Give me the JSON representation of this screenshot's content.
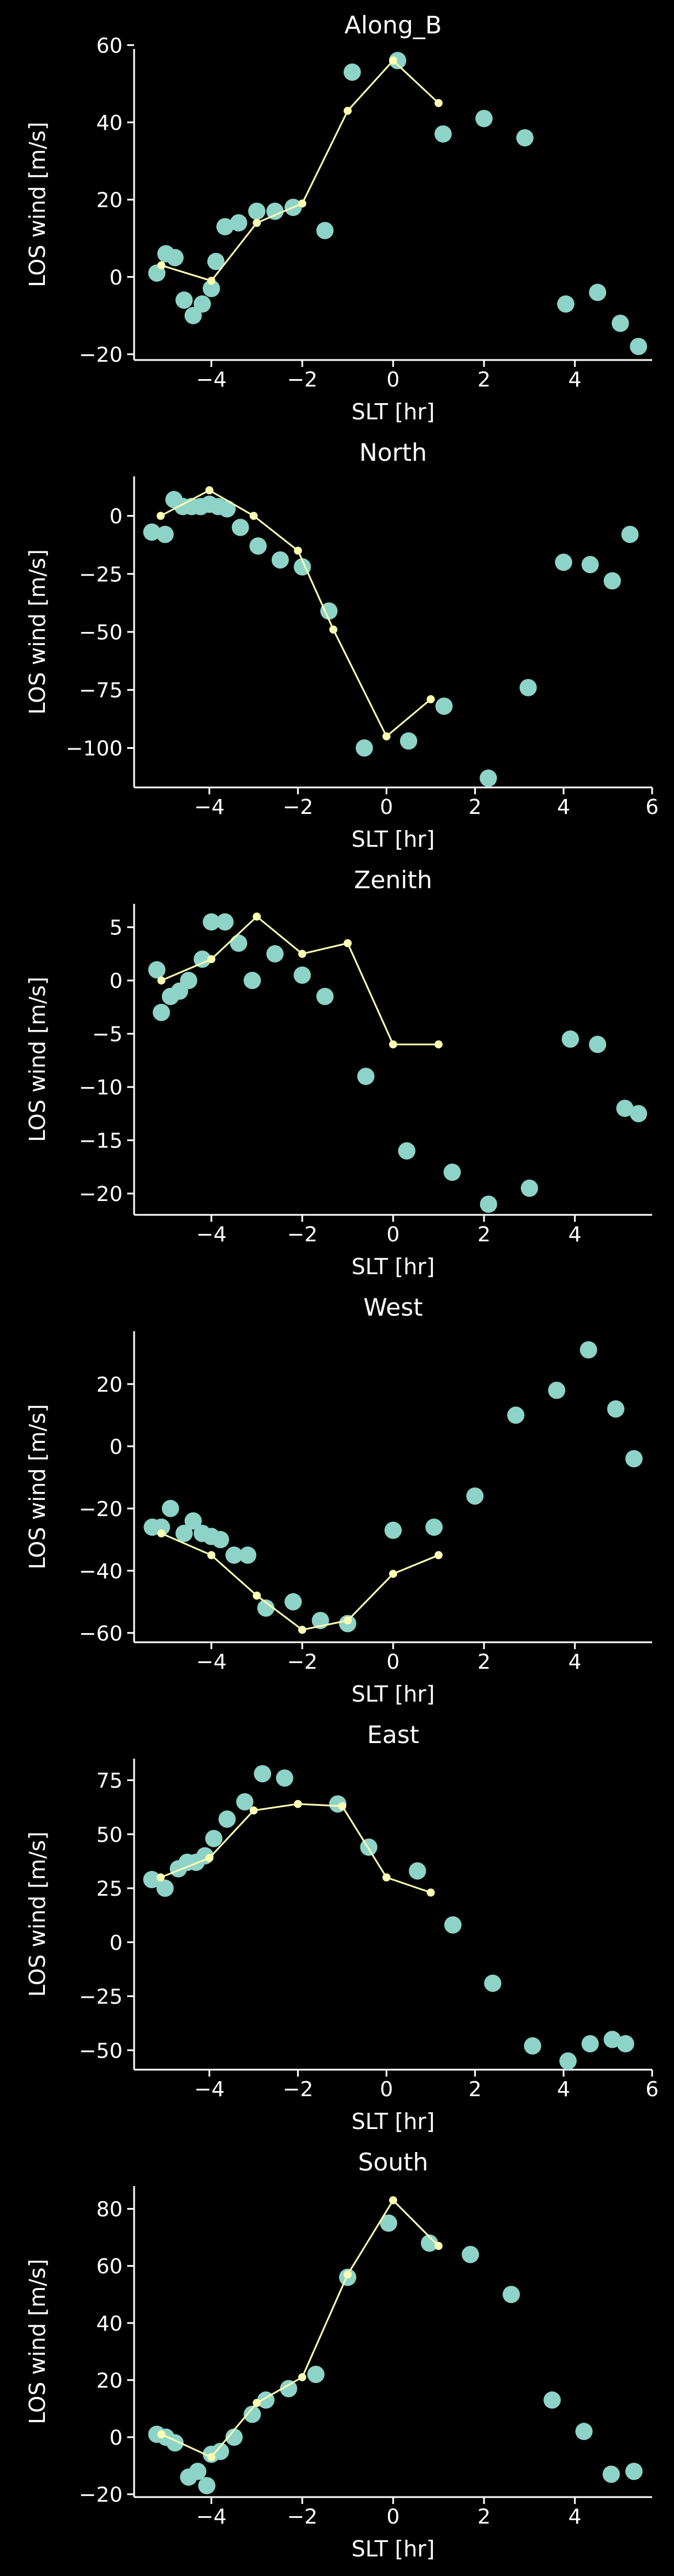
{
  "colors": {
    "background": "#000000",
    "axis": "#ffffff",
    "scatter": "#8dd3c7",
    "line": "#ffffb3"
  },
  "chart_data": [
    {
      "type": "scatter",
      "title": "Along_B",
      "xlabel": "SLT [hr]",
      "ylabel": "LOS wind [m/s]",
      "xlim": [
        -5.7,
        5.7
      ],
      "ylim": [
        -21.5,
        59
      ],
      "xticks": [
        -4,
        -2,
        0,
        2,
        4
      ],
      "yticks": [
        -20,
        0,
        20,
        40,
        60
      ],
      "xtick_labels": [
        "−4",
        "−2",
        "0",
        "2",
        "4"
      ],
      "ytick_labels": [
        "−20",
        "0",
        "20",
        "40",
        "60"
      ],
      "grid": false,
      "scatter": {
        "x": [
          -5.2,
          -5.0,
          -4.8,
          -4.6,
          -4.4,
          -4.2,
          -4.0,
          -3.9,
          -3.7,
          -3.4,
          -3.0,
          -2.6,
          -2.2,
          -1.5,
          -0.9,
          0.1,
          1.1,
          2.0,
          2.9,
          3.8,
          4.5,
          5.0,
          5.4
        ],
        "y": [
          1,
          6,
          5,
          -6,
          -10,
          -7,
          -3,
          4,
          13,
          14,
          17,
          17,
          18,
          12,
          53,
          56,
          37,
          41,
          36,
          -7,
          -4,
          -12,
          -18
        ]
      },
      "line": {
        "x": [
          -5.1,
          -4.0,
          -3.0,
          -2.0,
          -1.0,
          0.0,
          1.0
        ],
        "y": [
          3,
          -1,
          14,
          19,
          43,
          56,
          45
        ]
      }
    },
    {
      "type": "scatter",
      "title": "North",
      "xlabel": "SLT [hr]",
      "ylabel": "LOS wind [m/s]",
      "xlim": [
        -5.7,
        6.0
      ],
      "ylim": [
        -117,
        17
      ],
      "xticks": [
        -4,
        -2,
        0,
        2,
        4,
        6
      ],
      "yticks": [
        -100,
        -75,
        -50,
        -25,
        0
      ],
      "xtick_labels": [
        "−4",
        "−2",
        "0",
        "2",
        "4",
        "6"
      ],
      "ytick_labels": [
        "−100",
        "−75",
        "−50",
        "−25",
        "0"
      ],
      "grid": false,
      "scatter": {
        "x": [
          -5.3,
          -5.0,
          -4.8,
          -4.6,
          -4.4,
          -4.2,
          -4.0,
          -3.8,
          -3.6,
          -3.3,
          -2.9,
          -2.4,
          -1.9,
          -1.3,
          -0.5,
          0.5,
          1.3,
          2.3,
          3.2,
          4.0,
          4.6,
          5.1,
          5.5
        ],
        "y": [
          -7,
          -8,
          7,
          4,
          4,
          4,
          5,
          4,
          3,
          -5,
          -13,
          -19,
          -22,
          -41,
          -100,
          -97,
          -82,
          -113,
          -74,
          -20,
          -21,
          -28,
          -8
        ]
      },
      "line": {
        "x": [
          -5.1,
          -4.0,
          -3.0,
          -2.0,
          -1.2,
          0.0,
          1.0
        ],
        "y": [
          0,
          11,
          0,
          -15,
          -49,
          -95,
          -79
        ]
      }
    },
    {
      "type": "scatter",
      "title": "Zenith",
      "xlabel": "SLT [hr]",
      "ylabel": "LOS wind [m/s]",
      "xlim": [
        -5.7,
        5.7
      ],
      "ylim": [
        -22,
        7.2
      ],
      "xticks": [
        -4,
        -2,
        0,
        2,
        4
      ],
      "yticks": [
        -20,
        -15,
        -10,
        -5,
        0,
        5
      ],
      "xtick_labels": [
        "−4",
        "−2",
        "0",
        "2",
        "4"
      ],
      "ytick_labels": [
        "−20",
        "−15",
        "−10",
        "−5",
        "0",
        "5"
      ],
      "grid": false,
      "scatter": {
        "x": [
          -5.2,
          -5.1,
          -4.9,
          -4.7,
          -4.5,
          -4.2,
          -4.0,
          -3.7,
          -3.4,
          -3.1,
          -2.6,
          -2.0,
          -1.5,
          -0.6,
          0.3,
          1.3,
          2.1,
          3.0,
          3.9,
          4.5,
          5.1,
          5.4
        ],
        "y": [
          1,
          -3,
          -1.5,
          -1,
          0,
          2,
          5.5,
          5.5,
          3.5,
          0,
          2.5,
          0.5,
          -1.5,
          -9,
          -16,
          -18,
          -21,
          -19.5,
          -5.5,
          -6,
          -12,
          -12.5
        ]
      },
      "line": {
        "x": [
          -5.1,
          -4.0,
          -3.0,
          -2.0,
          -1.0,
          0.0,
          1.0
        ],
        "y": [
          0,
          2,
          6,
          2.5,
          3.5,
          -6,
          -6
        ]
      }
    },
    {
      "type": "scatter",
      "title": "West",
      "xlabel": "SLT [hr]",
      "ylabel": "LOS wind [m/s]",
      "xlim": [
        -5.7,
        5.7
      ],
      "ylim": [
        -63,
        37
      ],
      "xticks": [
        -4,
        -2,
        0,
        2,
        4
      ],
      "yticks": [
        -60,
        -40,
        -20,
        0,
        20
      ],
      "xtick_labels": [
        "−4",
        "−2",
        "0",
        "2",
        "4"
      ],
      "ytick_labels": [
        "−60",
        "−40",
        "−20",
        "0",
        "20"
      ],
      "grid": false,
      "scatter": {
        "x": [
          -5.3,
          -5.1,
          -4.9,
          -4.6,
          -4.4,
          -4.2,
          -4.0,
          -3.8,
          -3.5,
          -3.2,
          -2.8,
          -2.2,
          -1.6,
          -1.0,
          0.0,
          0.9,
          1.8,
          2.7,
          3.6,
          4.3,
          4.9,
          5.3
        ],
        "y": [
          -26,
          -26,
          -20,
          -28,
          -24,
          -28,
          -29,
          -30,
          -35,
          -35,
          -52,
          -50,
          -56,
          -57,
          -27,
          -26,
          -16,
          10,
          18,
          31,
          12,
          -4
        ]
      },
      "line": {
        "x": [
          -5.1,
          -4.0,
          -3.0,
          -2.0,
          -1.0,
          0.0,
          1.0
        ],
        "y": [
          -28,
          -35,
          -48,
          -59,
          -56,
          -41,
          -35
        ]
      }
    },
    {
      "type": "scatter",
      "title": "East",
      "xlabel": "SLT [hr]",
      "ylabel": "LOS wind [m/s]",
      "xlim": [
        -5.7,
        6.0
      ],
      "ylim": [
        -59,
        85
      ],
      "xticks": [
        -4,
        -2,
        0,
        2,
        4,
        6
      ],
      "yticks": [
        -50,
        -25,
        0,
        25,
        50,
        75
      ],
      "xtick_labels": [
        "−4",
        "−2",
        "0",
        "2",
        "4",
        "6"
      ],
      "ytick_labels": [
        "−50",
        "−25",
        "0",
        "25",
        "50",
        "75"
      ],
      "grid": false,
      "scatter": {
        "x": [
          -5.3,
          -5.0,
          -4.7,
          -4.5,
          -4.3,
          -4.1,
          -3.9,
          -3.6,
          -3.2,
          -2.8,
          -2.3,
          -1.1,
          -0.4,
          0.7,
          1.5,
          2.4,
          3.3,
          4.1,
          4.6,
          5.1,
          5.4
        ],
        "y": [
          29,
          25,
          34,
          37,
          37,
          40,
          48,
          57,
          65,
          78,
          76,
          64,
          44,
          33,
          8,
          -19,
          -48,
          -55,
          -47,
          -45,
          -47
        ]
      },
      "line": {
        "x": [
          -5.1,
          -4.0,
          -3.0,
          -2.0,
          -1.0,
          0.0,
          1.0
        ],
        "y": [
          30,
          39,
          61,
          64,
          63,
          30,
          23
        ]
      }
    },
    {
      "type": "scatter",
      "title": "South",
      "xlabel": "SLT [hr]",
      "ylabel": "LOS wind [m/s]",
      "xlim": [
        -5.7,
        5.7
      ],
      "ylim": [
        -21,
        88
      ],
      "xticks": [
        -4,
        -2,
        0,
        2,
        4
      ],
      "yticks": [
        -20,
        0,
        20,
        40,
        60,
        80
      ],
      "xtick_labels": [
        "−4",
        "−2",
        "0",
        "2",
        "4"
      ],
      "ytick_labels": [
        "−20",
        "0",
        "20",
        "40",
        "60",
        "80"
      ],
      "grid": false,
      "scatter": {
        "x": [
          -5.2,
          -5.0,
          -4.8,
          -4.5,
          -4.3,
          -4.1,
          -4.0,
          -3.8,
          -3.5,
          -3.1,
          -2.8,
          -2.3,
          -1.7,
          -1.0,
          -0.1,
          0.8,
          1.7,
          2.6,
          3.5,
          4.2,
          4.8,
          5.3
        ],
        "y": [
          1,
          0,
          -2,
          -14,
          -12,
          -17,
          -6,
          -5,
          0,
          8,
          13,
          17,
          22,
          56,
          75,
          68,
          64,
          50,
          13,
          2,
          -13,
          -12
        ]
      },
      "line": {
        "x": [
          -5.1,
          -4.0,
          -3.0,
          -2.0,
          -1.0,
          0.0,
          1.0
        ],
        "y": [
          1,
          -7,
          12,
          21,
          57,
          83,
          67
        ]
      }
    }
  ]
}
